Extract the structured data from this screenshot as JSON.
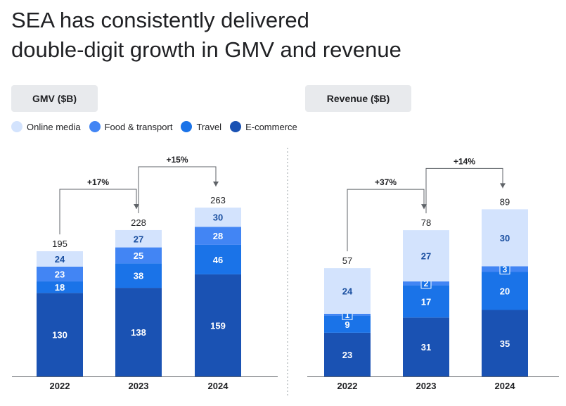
{
  "title": {
    "line1": "SEA has consistently delivered",
    "line2": "double-digit growth in GMV and revenue"
  },
  "legend": [
    {
      "label": "Online media",
      "color": "#d3e3fd"
    },
    {
      "label": "Food & transport",
      "color": "#4285f4"
    },
    {
      "label": "Travel",
      "color": "#1a73e8"
    },
    {
      "label": "E-commerce",
      "color": "#1a52b3"
    }
  ],
  "chart_data": [
    {
      "type": "bar",
      "stacked": true,
      "title": "GMV ($B)",
      "categories": [
        "2022",
        "2023",
        "2024"
      ],
      "series": [
        {
          "name": "E-commerce",
          "values": [
            130,
            138,
            159
          ],
          "color": "#1a52b3"
        },
        {
          "name": "Travel",
          "values": [
            18,
            38,
            46
          ],
          "color": "#1a73e8"
        },
        {
          "name": "Food & transport",
          "values": [
            23,
            25,
            28
          ],
          "color": "#4285f4"
        },
        {
          "name": "Online media",
          "values": [
            24,
            27,
            30
          ],
          "color": "#d3e3fd"
        }
      ],
      "totals": [
        195,
        228,
        263
      ],
      "growth": [
        {
          "from": "2022",
          "to": "2023",
          "label": "+17%"
        },
        {
          "from": "2023",
          "to": "2024",
          "label": "+15%"
        }
      ]
    },
    {
      "type": "bar",
      "stacked": true,
      "title": "Revenue ($B)",
      "categories": [
        "2022",
        "2023",
        "2024"
      ],
      "series": [
        {
          "name": "E-commerce",
          "values": [
            23,
            31,
            35
          ],
          "color": "#1a52b3"
        },
        {
          "name": "Travel",
          "values": [
            9,
            17,
            20
          ],
          "color": "#1a73e8"
        },
        {
          "name": "Food & transport",
          "values": [
            1,
            2,
            3
          ],
          "color": "#4285f4"
        },
        {
          "name": "Online media",
          "values": [
            24,
            27,
            30
          ],
          "color": "#d3e3fd"
        }
      ],
      "totals": [
        57,
        78,
        89
      ],
      "growth": [
        {
          "from": "2022",
          "to": "2023",
          "label": "+37%"
        },
        {
          "from": "2023",
          "to": "2024",
          "label": "+14%"
        }
      ]
    }
  ]
}
